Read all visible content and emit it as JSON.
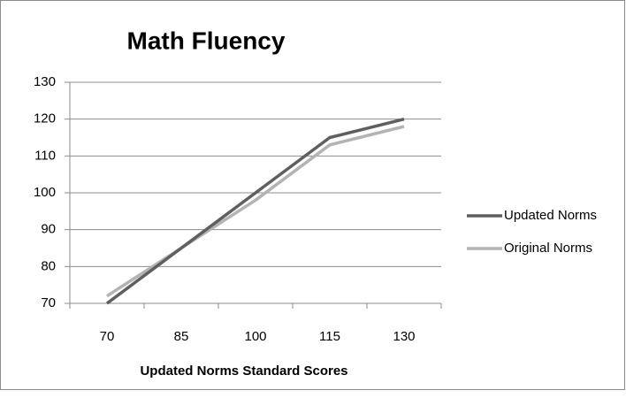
{
  "chart_data": {
    "type": "line",
    "title": "Math Fluency",
    "x_label": "Updated Norms Standard Scores",
    "categories": [
      70,
      85,
      100,
      115,
      130
    ],
    "series": [
      {
        "name": "Updated Norms",
        "color": "#5f5f5f",
        "values": [
          70,
          85,
          100,
          115,
          120
        ]
      },
      {
        "name": "Original Norms",
        "color": "#b3b3b3",
        "values": [
          72,
          85,
          98,
          113,
          118
        ]
      }
    ],
    "ylim": [
      70,
      130
    ],
    "yticks": [
      70,
      80,
      90,
      100,
      110,
      120,
      130
    ],
    "grid": true,
    "legend": "right"
  }
}
